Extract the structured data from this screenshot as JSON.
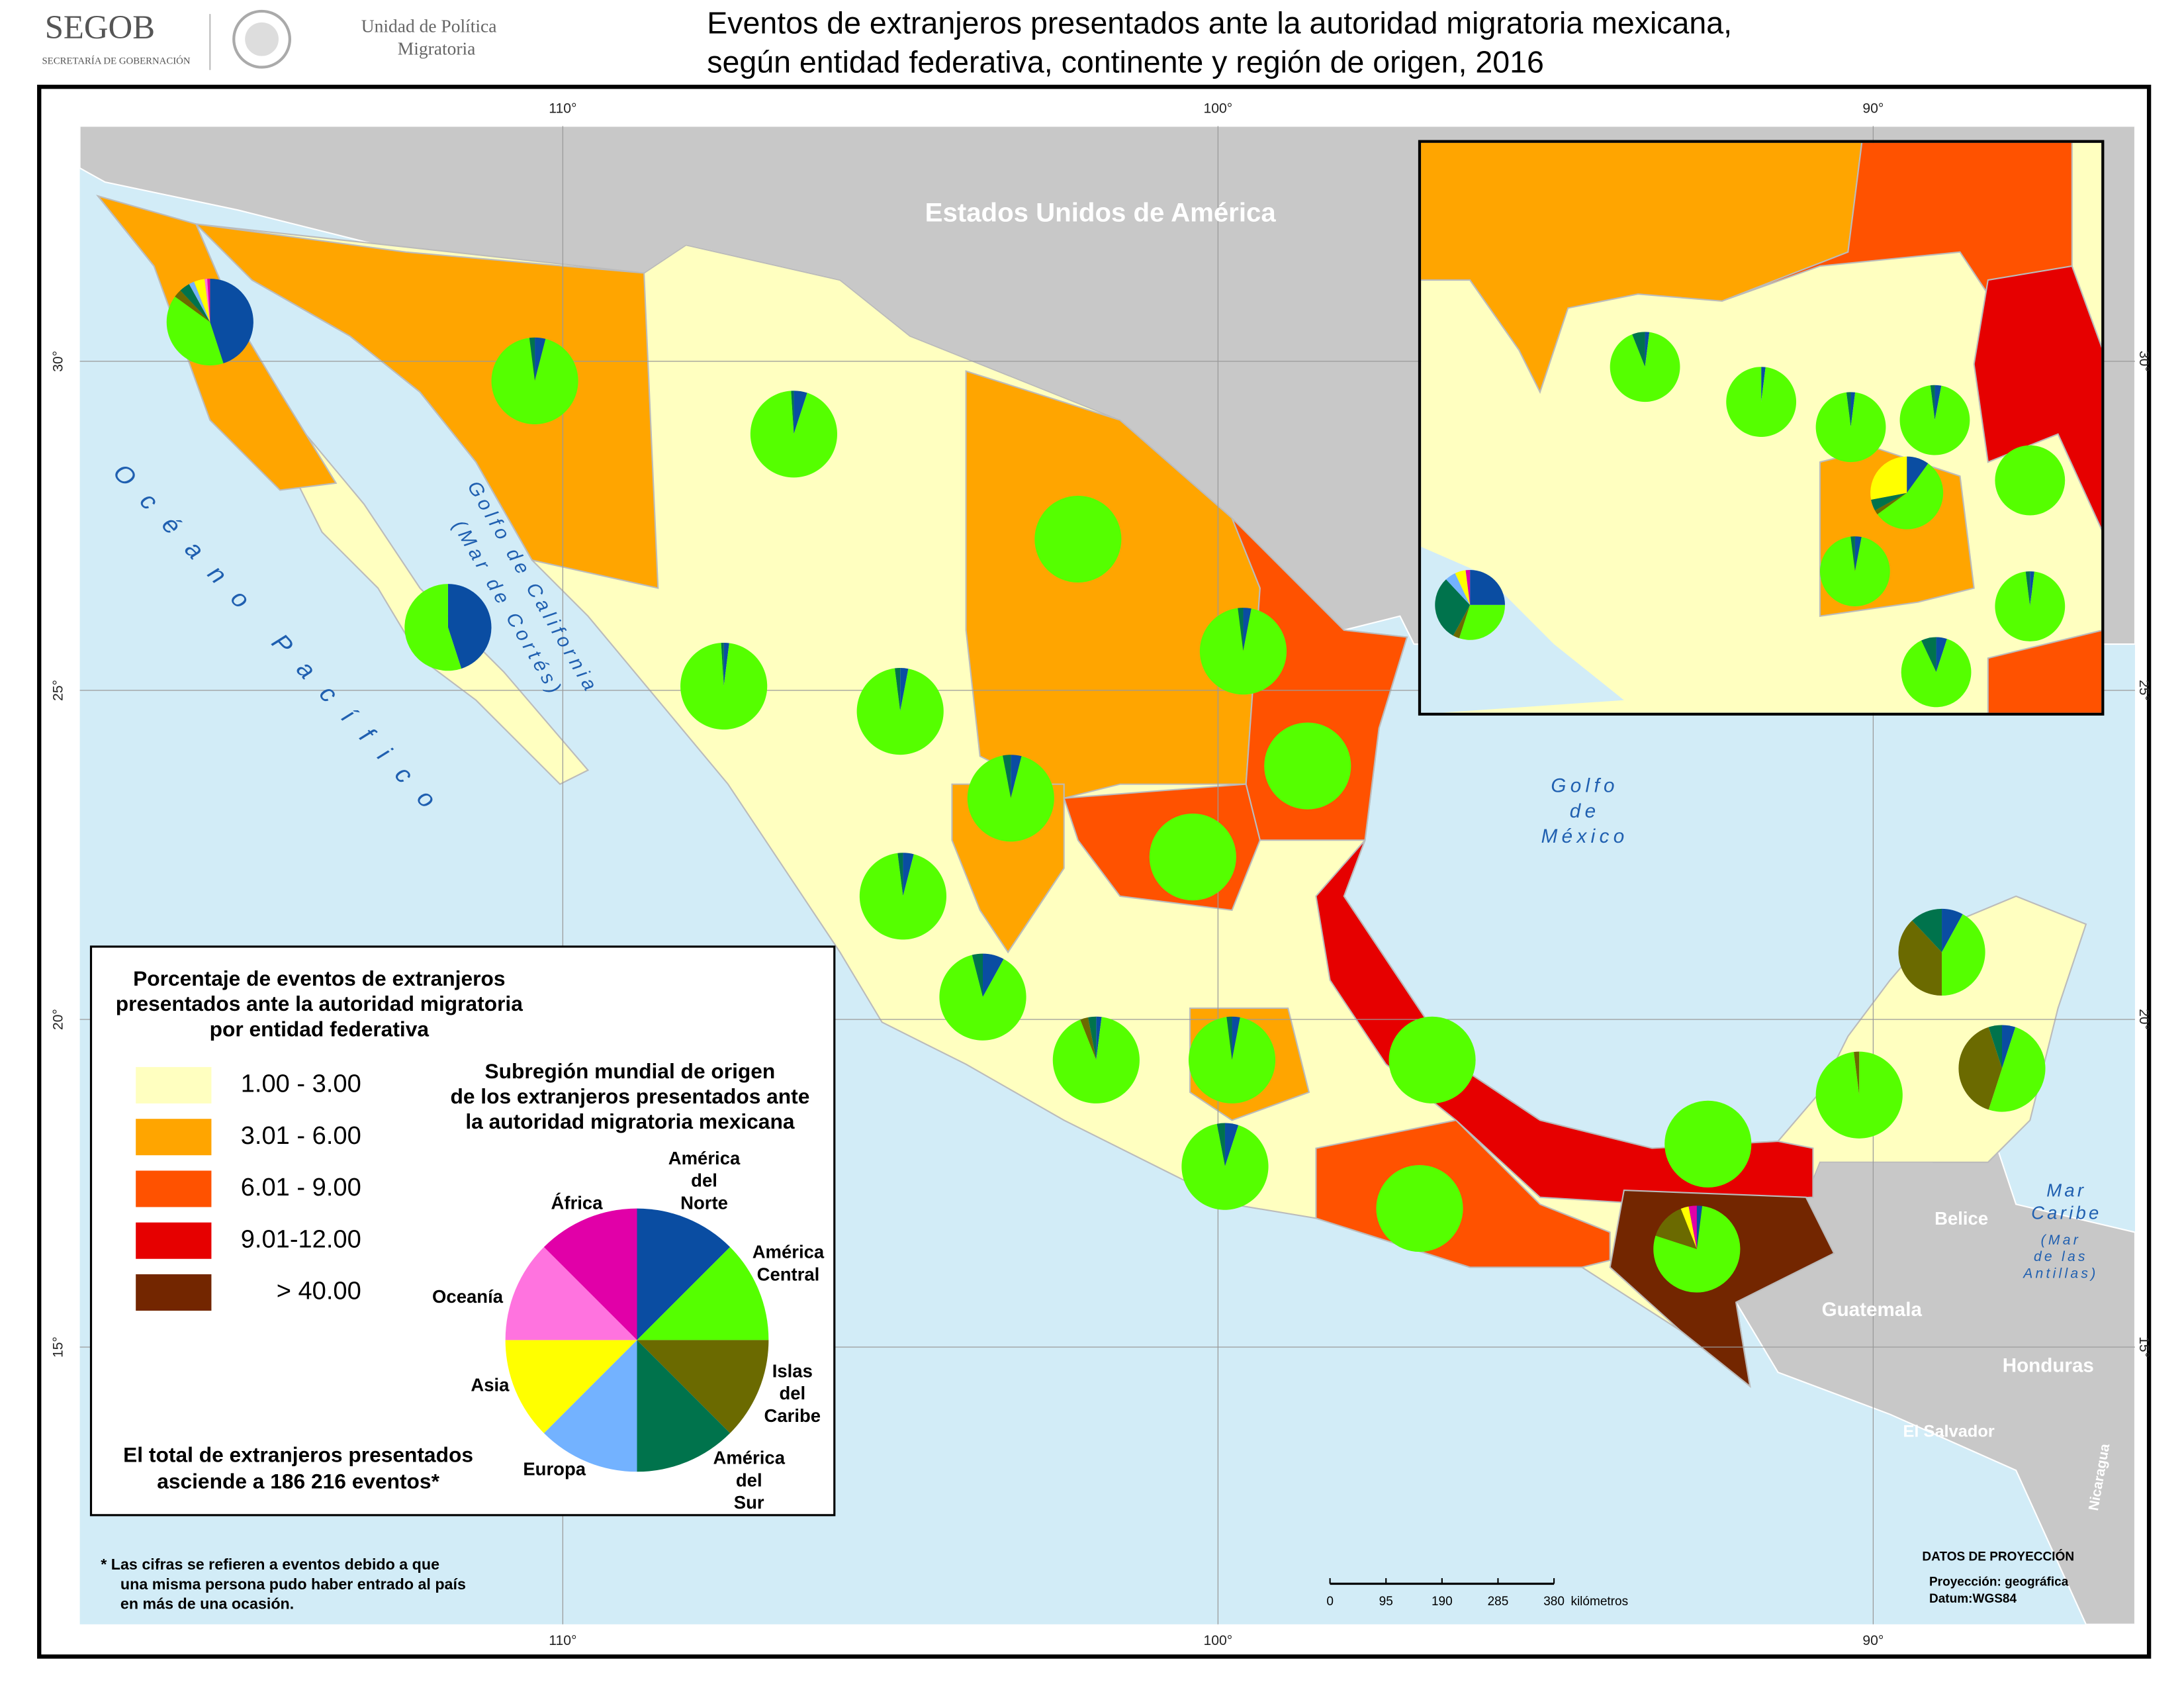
{
  "header": {
    "logo": "SEGOB",
    "logo_subtitle": "SECRETARÍA DE GOBERNACIÓN",
    "unit": [
      "Unidad de Política",
      "Migratoria"
    ],
    "title": [
      "Eventos de extranjeros presentados ante la autoridad migratoria mexicana,",
      "según entidad federativa, continente y región de origen, 2016"
    ]
  },
  "map": {
    "countries": {
      "usa": "Estados Unidos de América",
      "belize": "Belice",
      "guatemala": "Guatemala",
      "honduras": "Honduras",
      "el_salvador": "El Salvador",
      "nicaragua": "Nicaragua"
    },
    "seas": {
      "pacific": "Océano Pacífico",
      "gulf_california": [
        "Golfo de California",
        "(Mar de Cortés)"
      ],
      "gulf_mexico": [
        "Golfo",
        "de",
        "México"
      ],
      "caribbean": [
        "Mar",
        "Caribe",
        "(Mar",
        "de las",
        "Antillas)"
      ]
    },
    "meridians": [
      "110°",
      "100°",
      "90°"
    ],
    "parallels": [
      "30°",
      "25°",
      "20°",
      "15°"
    ],
    "state_pies": [
      [
        45,
        40,
        3,
        4,
        2,
        4,
        1,
        1
      ],
      [
        4,
        94,
        0,
        2,
        0,
        0,
        0,
        0
      ],
      [
        5,
        94,
        0,
        1,
        0,
        0,
        0,
        0
      ],
      [
        45,
        55,
        0,
        0,
        0,
        0,
        0,
        0
      ],
      [
        0,
        100,
        0,
        0,
        0,
        0,
        0,
        0
      ],
      [
        3,
        95,
        0,
        2,
        0,
        0,
        0,
        0
      ],
      [
        2,
        97,
        0,
        1,
        0,
        0,
        0,
        0
      ],
      [
        3,
        95,
        0,
        2,
        0,
        0,
        0,
        0
      ],
      [
        4,
        93,
        0,
        3,
        0,
        0,
        0,
        0
      ],
      [
        0,
        100,
        0,
        0,
        0,
        0,
        0,
        0
      ],
      [
        0,
        100,
        0,
        0,
        0,
        0,
        0,
        0
      ],
      [
        4,
        94,
        0,
        2,
        0,
        0,
        0,
        0
      ],
      [
        8,
        88,
        0,
        4,
        0,
        0,
        0,
        0
      ],
      [
        2,
        92,
        3,
        3,
        0,
        0,
        0,
        0
      ],
      [
        3,
        95,
        0,
        2,
        0,
        0,
        0,
        0
      ],
      [
        0,
        100,
        0,
        0,
        0,
        0,
        0,
        0
      ],
      [
        5,
        92,
        0,
        3,
        0,
        0,
        0,
        0
      ],
      [
        0,
        100,
        0,
        0,
        0,
        0,
        0,
        0
      ],
      [
        0,
        100,
        0,
        0,
        0,
        0,
        0,
        0
      ],
      [
        2,
        78,
        14,
        0,
        0,
        3,
        0,
        3
      ],
      [
        0,
        98,
        2,
        0,
        0,
        0,
        0,
        0
      ],
      [
        8,
        42,
        38,
        12,
        0,
        0,
        0,
        0
      ],
      [
        5,
        50,
        40,
        5,
        0,
        0,
        0,
        0
      ],
      [
        2,
        92,
        0,
        6,
        0,
        0,
        0,
        0
      ],
      [
        2,
        98,
        0,
        0,
        0,
        0,
        0,
        0
      ],
      [
        2,
        96,
        0,
        2,
        0,
        0,
        0,
        0
      ],
      [
        3,
        95,
        0,
        2,
        0,
        0,
        0,
        0
      ],
      [
        10,
        55,
        2,
        5,
        0,
        28,
        0,
        0
      ],
      [
        0,
        100,
        0,
        0,
        0,
        0,
        0,
        0
      ],
      [
        3,
        95,
        0,
        2,
        0,
        0,
        0,
        0
      ],
      [
        2,
        96,
        0,
        2,
        0,
        0,
        0,
        0
      ],
      [
        5,
        88,
        0,
        7,
        0,
        0,
        0,
        0
      ],
      [
        25,
        30,
        3,
        30,
        5,
        5,
        0,
        2
      ]
    ]
  },
  "legend": {
    "choropleth_title": [
      "Porcentaje de eventos de extranjeros",
      "presentados ante la autoridad migratoria",
      "por entidad federativa"
    ],
    "classes": [
      {
        "label": "1.00 - 3.00",
        "color": "#ffffc0"
      },
      {
        "label": "3.01 - 6.00",
        "color": "#ffa500"
      },
      {
        "label": "6.01 - 9.00",
        "color": "#ff5200"
      },
      {
        "label": "9.01-12.00",
        "color": "#e60000"
      },
      {
        "label": "> 40.00",
        "color": "#732600"
      }
    ],
    "pie_title": [
      "Subregión mundial de origen",
      "de los extranjeros presentados ante",
      "la autoridad migratoria mexicana"
    ],
    "regions": [
      {
        "label": [
          "América",
          "del",
          "Norte"
        ],
        "color": "#0a4da2"
      },
      {
        "label": [
          "América",
          "Central"
        ],
        "color": "#55ff00"
      },
      {
        "label": [
          "Islas",
          "del",
          "Caribe"
        ],
        "color": "#6b6a00"
      },
      {
        "label": [
          "América",
          "del",
          "Sur"
        ],
        "color": "#00734c"
      },
      {
        "label": [
          "Europa"
        ],
        "color": "#73b2ff"
      },
      {
        "label": [
          "Asia"
        ],
        "color": "#ffff00"
      },
      {
        "label": [
          "Oceanía"
        ],
        "color": "#ff73df"
      },
      {
        "label": [
          "África"
        ],
        "color": "#e100a8"
      }
    ],
    "total": [
      "El total de extranjeros presentados",
      "asciende a 186 216 eventos*"
    ]
  },
  "footnote": [
    "* Las cifras se refieren a eventos debido a que",
    "una misma persona pudo haber entrado al país",
    "en más de una ocasión."
  ],
  "projection": [
    "DATOS DE PROYECCIÓN",
    "Proyección: geográfica",
    "Datum:WGS84"
  ],
  "scale": {
    "ticks": [
      0,
      95,
      190,
      285,
      380
    ],
    "unit": "kilómetros"
  }
}
